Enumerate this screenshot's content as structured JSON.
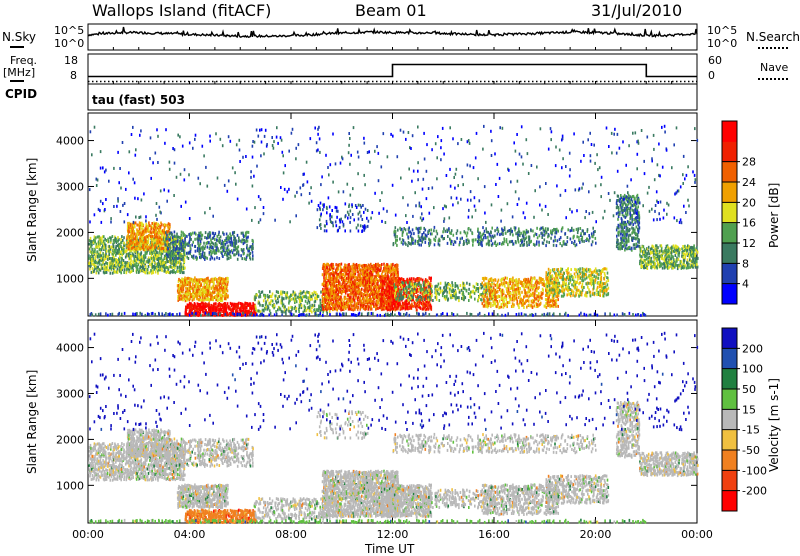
{
  "header": {
    "station": "Wallops Island (fitACF)",
    "beam": "Beam 01",
    "date": "31/Jul/2010"
  },
  "left_labels": {
    "nsky": "N.Sky",
    "freq": "Freq.",
    "mhz": "[MHz]",
    "cpid": "CPID",
    "nsky_top": "10^5",
    "nsky_bottom": "10^0",
    "freq_top": "18",
    "freq_bottom": "8"
  },
  "right_labels": {
    "nsearch": "N.Search",
    "nave": "Nave",
    "nsearch_top": "10^5",
    "nsearch_bottom": "10^0",
    "nave_top": "60",
    "nave_bottom": "0"
  },
  "cpid_text": "tau (fast) 503",
  "chart_data": [
    {
      "type": "line",
      "panel": "noise",
      "series": [
        {
          "name": "N.Sky",
          "values": [
            3.0,
            3.2,
            3.4,
            3.5,
            3.5,
            3.4,
            3.3,
            3.2,
            3.1,
            3.0,
            2.9,
            2.8,
            2.7,
            2.7,
            2.7,
            2.7,
            2.8,
            2.9,
            3.1,
            3.3,
            3.4,
            3.5,
            3.6,
            3.6,
            3.5,
            3.5,
            3.4,
            3.5,
            3.3,
            3.2,
            3.1,
            3.0,
            3.0,
            3.1,
            3.2,
            3.3,
            3.4,
            3.5,
            3.6,
            3.6,
            3.5,
            3.4,
            3.2,
            3.0,
            2.9,
            2.8,
            2.9,
            3.1,
            3.2
          ]
        },
        {
          "name": "N.Search",
          "values": []
        }
      ],
      "x_range": [
        "00:00",
        "24:00"
      ],
      "ylim": [
        "10^0",
        "10^5"
      ]
    },
    {
      "type": "line",
      "panel": "frequency",
      "series": [
        {
          "name": "Freq. [MHz]",
          "x": [
            "00:00",
            "12:00",
            "12:00",
            "22:00",
            "22:00",
            "24:00"
          ],
          "values": [
            10.5,
            10.5,
            14.5,
            14.5,
            10.5,
            10.5
          ]
        },
        {
          "name": "Nave",
          "x": [
            "00:00",
            "24:00"
          ],
          "values": [
            5,
            5
          ]
        }
      ],
      "ylim": [
        8,
        18
      ],
      "y2lim": [
        0,
        60
      ]
    },
    {
      "type": "heatmap",
      "panel": "power",
      "ylabel": "Slant Range [km]",
      "x_ticks": [
        "00:00",
        "04:00",
        "08:00",
        "12:00",
        "16:00",
        "20:00",
        "00:00"
      ],
      "y_ticks": [
        1000,
        2000,
        3000,
        4000
      ],
      "ylim": [
        180,
        4600
      ],
      "colorbar": {
        "label": "Power [dB]",
        "ticks": [
          "4",
          "8",
          "12",
          "16",
          "20",
          "24",
          "28"
        ],
        "colors": [
          "#0000ff",
          "#2040b0",
          "#3a7a60",
          "#50a050",
          "#e0e020",
          "#f0a000",
          "#f06000",
          "#f02000",
          "#ff0000"
        ]
      }
    },
    {
      "type": "heatmap",
      "panel": "velocity",
      "xlabel": "Time UT",
      "ylabel": "Slant Range [km]",
      "x_ticks": [
        "00:00",
        "04:00",
        "08:00",
        "12:00",
        "16:00",
        "20:00",
        "00:00"
      ],
      "y_ticks": [
        1000,
        2000,
        3000,
        4000
      ],
      "ylim": [
        180,
        4600
      ],
      "colorbar": {
        "label": "Velocity [m s-1]",
        "ticks": [
          "200",
          "100",
          "50",
          "15",
          "-15",
          "-50",
          "-100",
          "-200"
        ],
        "colors": [
          "#1010c0",
          "#2050b0",
          "#208040",
          "#60c040",
          "#b8b8b8",
          "#f0c040",
          "#f08020",
          "#f04010",
          "#ff0000"
        ]
      }
    }
  ]
}
